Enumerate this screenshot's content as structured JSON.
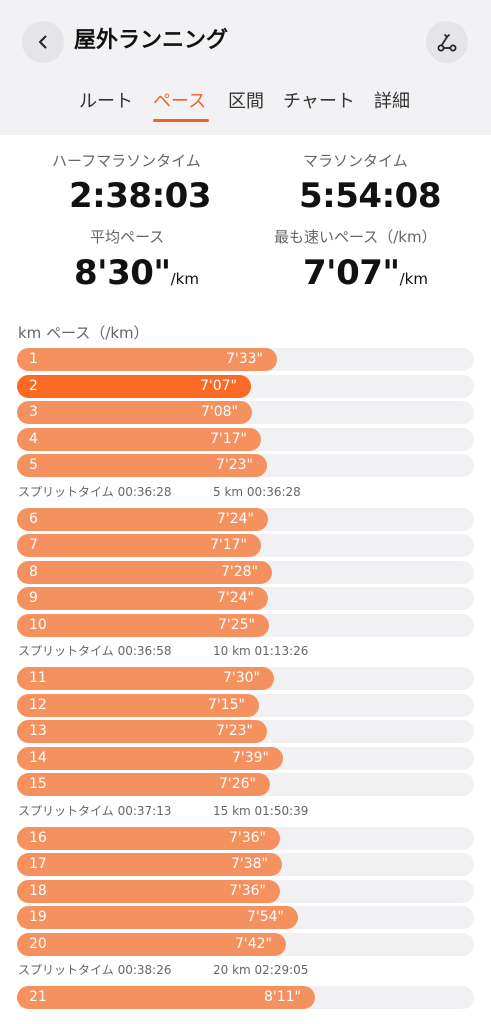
{
  "header": {
    "title": "屋外ランニング",
    "back_icon": "chevron-left-icon",
    "route_icon": "route-icon"
  },
  "tabs": [
    {
      "label": "ルート",
      "active": false
    },
    {
      "label": "ペース",
      "active": true
    },
    {
      "label": "区間",
      "active": false
    },
    {
      "label": "チャート",
      "active": false
    },
    {
      "label": "詳細",
      "active": false
    }
  ],
  "stats": {
    "half_marathon_label": "ハーフマラソンタイム",
    "half_marathon_value": "2:38:03",
    "marathon_label": "マラソンタイム",
    "marathon_value": "5:54:08",
    "avg_pace_label": "平均ペース",
    "avg_pace_value": "8'30\"",
    "avg_pace_unit": "/km",
    "fastest_pace_label": "最も速いペース（/km）",
    "fastest_pace_value": "7'07\"",
    "fastest_pace_unit": "/km"
  },
  "pace_header": "km   ペース（/km）",
  "accent_color": "#f26322",
  "bar_color": "#f5915f",
  "fastest_bar_color": "#fb6a24",
  "pace_rows": [
    {
      "km": "1",
      "pace": "7'33\"",
      "seconds": 453
    },
    {
      "km": "2",
      "pace": "7'07\"",
      "seconds": 427,
      "fastest": true
    },
    {
      "km": "3",
      "pace": "7'08\"",
      "seconds": 428
    },
    {
      "km": "4",
      "pace": "7'17\"",
      "seconds": 437
    },
    {
      "km": "5",
      "pace": "7'23\"",
      "seconds": 443
    },
    {
      "split": "スプリットタイム 00:36:28",
      "total": "5 km 00:36:28"
    },
    {
      "km": "6",
      "pace": "7'24\"",
      "seconds": 444
    },
    {
      "km": "7",
      "pace": "7'17\"",
      "seconds": 437
    },
    {
      "km": "8",
      "pace": "7'28\"",
      "seconds": 448
    },
    {
      "km": "9",
      "pace": "7'24\"",
      "seconds": 444
    },
    {
      "km": "10",
      "pace": "7'25\"",
      "seconds": 445
    },
    {
      "split": "スプリットタイム 00:36:58",
      "total": "10 km 01:13:26"
    },
    {
      "km": "11",
      "pace": "7'30\"",
      "seconds": 450
    },
    {
      "km": "12",
      "pace": "7'15\"",
      "seconds": 435
    },
    {
      "km": "13",
      "pace": "7'23\"",
      "seconds": 443
    },
    {
      "km": "14",
      "pace": "7'39\"",
      "seconds": 459
    },
    {
      "km": "15",
      "pace": "7'26\"",
      "seconds": 446
    },
    {
      "split": "スプリットタイム 00:37:13",
      "total": "15 km 01:50:39"
    },
    {
      "km": "16",
      "pace": "7'36\"",
      "seconds": 456
    },
    {
      "km": "17",
      "pace": "7'38\"",
      "seconds": 458
    },
    {
      "km": "18",
      "pace": "7'36\"",
      "seconds": 456
    },
    {
      "km": "19",
      "pace": "7'54\"",
      "seconds": 474
    },
    {
      "km": "20",
      "pace": "7'42\"",
      "seconds": 462
    },
    {
      "split": "スプリットタイム 00:38:26",
      "total": "20 km 02:29:05"
    },
    {
      "km": "21",
      "pace": "8'11\"",
      "seconds": 491
    }
  ]
}
